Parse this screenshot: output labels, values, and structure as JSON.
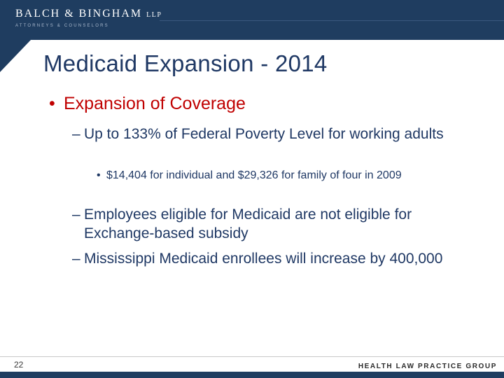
{
  "header": {
    "logo": {
      "main": "BALCH & BINGHAM",
      "suffix": "LLP",
      "tagline": "ATTORNEYS & COUNSELORS"
    }
  },
  "slide": {
    "title": "Medicaid Expansion - 2014",
    "markers": {
      "dot": "•",
      "dash": "–"
    },
    "bullets": {
      "level1": "Expansion of Coverage",
      "sub1": "Up to 133% of Federal Poverty Level for working adults",
      "detail1": "$14,404 for individual and $29,326 for family of four in 2009",
      "sub2": "Employees eligible for Medicaid are not eligible for Exchange-based subsidy",
      "sub3": "Mississippi Medicaid enrollees will increase by 400,000"
    }
  },
  "footer": {
    "page_number": "22",
    "label": "HEALTH LAW PRACTICE GROUP"
  },
  "colors": {
    "header_bg": "#1F3D60",
    "title_text": "#1F3864",
    "body_text": "#1F3864",
    "accent_red": "#C00000",
    "footer_bar": "#1F3D60"
  }
}
